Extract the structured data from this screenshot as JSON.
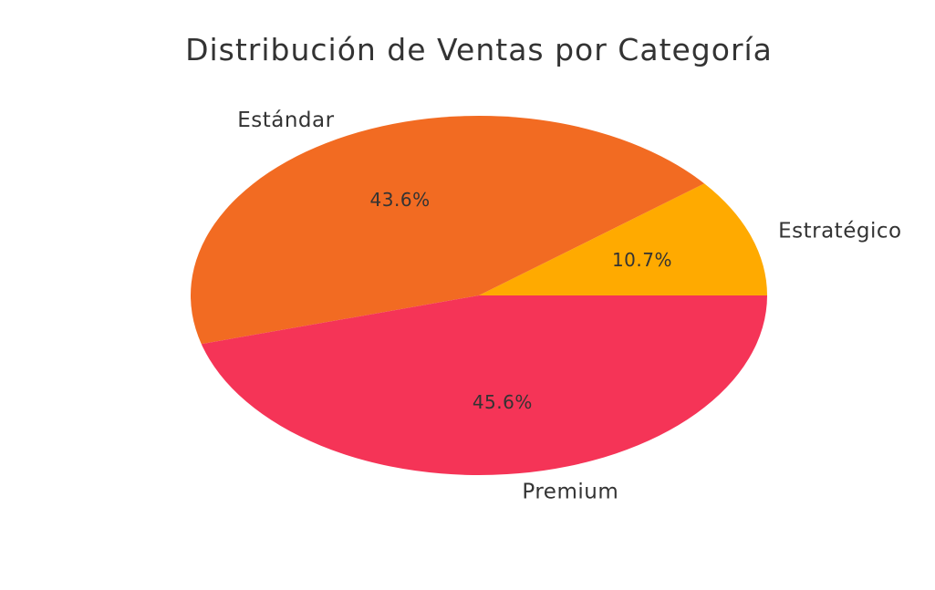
{
  "chart_data": {
    "type": "pie",
    "title": "Distribución de Ventas por Categoría",
    "slices": [
      {
        "label": "Estratégico",
        "value": 10.7,
        "pct_label": "10.7%",
        "color": "#ffaa00"
      },
      {
        "label": "Estándar",
        "value": 43.6,
        "pct_label": "43.6%",
        "color": "#f26b22"
      },
      {
        "label": "Premium",
        "value": 45.6,
        "pct_label": "45.6%",
        "color": "#f53457"
      }
    ],
    "legend": "none"
  }
}
